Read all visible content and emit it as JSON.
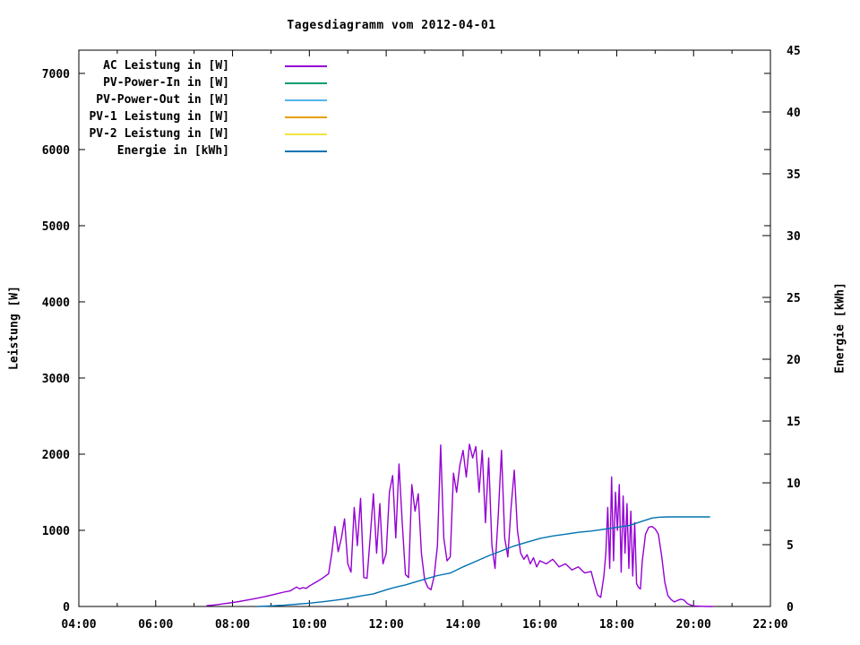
{
  "title": "Tagesdiagramm vom 2012-04-01",
  "chart_data": {
    "type": "line",
    "title": "Tagesdiagramm vom 2012-04-01",
    "background": "#ffffff",
    "border_color": "#000000",
    "grid": false,
    "legend_position": "top-left-inside",
    "x": {
      "unit": "time-of-day",
      "start_minutes": 240,
      "end_minutes": 1320,
      "major_tick_minutes": 120,
      "minor_tick_minutes": 60,
      "tick_labels": [
        "04:00",
        "06:00",
        "08:00",
        "10:00",
        "12:00",
        "14:00",
        "16:00",
        "18:00",
        "20:00",
        "22:00"
      ]
    },
    "y_left": {
      "label": "Leistung [W]",
      "min": 0,
      "max": 7305,
      "tick_values": [
        0,
        1000,
        2000,
        3000,
        4000,
        5000,
        6000,
        7000
      ]
    },
    "y_right": {
      "label": "Energie [kWh]",
      "min": 0,
      "max": 45,
      "tick_values": [
        0,
        5,
        10,
        15,
        20,
        25,
        30,
        35,
        40,
        45
      ]
    },
    "legend": [
      {
        "label": "AC Leistung in [W]",
        "color": "#9400d3"
      },
      {
        "label": "PV-Power-In in [W]",
        "color": "#009e73"
      },
      {
        "label": "PV-Power-Out in [W]",
        "color": "#56b4e9"
      },
      {
        "label": "PV-1 Leistung in [W]",
        "color": "#e69f00"
      },
      {
        "label": "PV-2 Leistung in [W]",
        "color": "#f0e442"
      },
      {
        "label": "Energie in [kWh]",
        "color": "#0072b2"
      }
    ],
    "series": [
      {
        "name": "AC Leistung in [W]",
        "axis": "left",
        "color": "#9400d3",
        "points": [
          [
            440,
            10
          ],
          [
            450,
            18
          ],
          [
            460,
            28
          ],
          [
            470,
            40
          ],
          [
            480,
            52
          ],
          [
            490,
            65
          ],
          [
            500,
            80
          ],
          [
            510,
            95
          ],
          [
            520,
            110
          ],
          [
            530,
            128
          ],
          [
            540,
            148
          ],
          [
            550,
            168
          ],
          [
            560,
            188
          ],
          [
            570,
            205
          ],
          [
            580,
            255
          ],
          [
            585,
            232
          ],
          [
            590,
            248
          ],
          [
            595,
            238
          ],
          [
            600,
            268
          ],
          [
            610,
            318
          ],
          [
            620,
            368
          ],
          [
            630,
            430
          ],
          [
            635,
            700
          ],
          [
            640,
            1050
          ],
          [
            645,
            720
          ],
          [
            650,
            900
          ],
          [
            655,
            1150
          ],
          [
            660,
            560
          ],
          [
            665,
            450
          ],
          [
            670,
            1300
          ],
          [
            675,
            800
          ],
          [
            680,
            1420
          ],
          [
            685,
            380
          ],
          [
            690,
            370
          ],
          [
            695,
            900
          ],
          [
            700,
            1480
          ],
          [
            705,
            700
          ],
          [
            710,
            1350
          ],
          [
            715,
            560
          ],
          [
            720,
            700
          ],
          [
            725,
            1500
          ],
          [
            730,
            1720
          ],
          [
            735,
            900
          ],
          [
            740,
            1870
          ],
          [
            745,
            1100
          ],
          [
            750,
            420
          ],
          [
            755,
            380
          ],
          [
            760,
            1600
          ],
          [
            765,
            1250
          ],
          [
            770,
            1480
          ],
          [
            775,
            700
          ],
          [
            780,
            350
          ],
          [
            785,
            250
          ],
          [
            790,
            220
          ],
          [
            795,
            400
          ],
          [
            800,
            800
          ],
          [
            805,
            2120
          ],
          [
            810,
            900
          ],
          [
            815,
            600
          ],
          [
            820,
            650
          ],
          [
            825,
            1750
          ],
          [
            830,
            1500
          ],
          [
            835,
            1850
          ],
          [
            840,
            2050
          ],
          [
            845,
            1700
          ],
          [
            850,
            2130
          ],
          [
            855,
            1950
          ],
          [
            860,
            2100
          ],
          [
            865,
            1500
          ],
          [
            870,
            2050
          ],
          [
            875,
            1100
          ],
          [
            880,
            1950
          ],
          [
            885,
            800
          ],
          [
            890,
            500
          ],
          [
            895,
            1200
          ],
          [
            900,
            2050
          ],
          [
            905,
            900
          ],
          [
            910,
            650
          ],
          [
            915,
            1300
          ],
          [
            920,
            1790
          ],
          [
            925,
            1000
          ],
          [
            930,
            700
          ],
          [
            935,
            620
          ],
          [
            940,
            680
          ],
          [
            945,
            560
          ],
          [
            950,
            640
          ],
          [
            955,
            520
          ],
          [
            960,
            600
          ],
          [
            970,
            560
          ],
          [
            980,
            620
          ],
          [
            990,
            520
          ],
          [
            1000,
            560
          ],
          [
            1010,
            480
          ],
          [
            1020,
            520
          ],
          [
            1030,
            440
          ],
          [
            1040,
            460
          ],
          [
            1045,
            300
          ],
          [
            1050,
            150
          ],
          [
            1055,
            120
          ],
          [
            1060,
            400
          ],
          [
            1063,
            700
          ],
          [
            1066,
            1300
          ],
          [
            1069,
            500
          ],
          [
            1072,
            1700
          ],
          [
            1075,
            600
          ],
          [
            1078,
            1500
          ],
          [
            1081,
            1000
          ],
          [
            1084,
            1600
          ],
          [
            1087,
            450
          ],
          [
            1090,
            1450
          ],
          [
            1093,
            700
          ],
          [
            1096,
            1350
          ],
          [
            1099,
            500
          ],
          [
            1102,
            1250
          ],
          [
            1105,
            400
          ],
          [
            1108,
            1100
          ],
          [
            1111,
            300
          ],
          [
            1114,
            250
          ],
          [
            1117,
            230
          ],
          [
            1120,
            600
          ],
          [
            1125,
            950
          ],
          [
            1130,
            1040
          ],
          [
            1135,
            1050
          ],
          [
            1140,
            1020
          ],
          [
            1145,
            950
          ],
          [
            1150,
            670
          ],
          [
            1155,
            320
          ],
          [
            1160,
            140
          ],
          [
            1165,
            90
          ],
          [
            1170,
            60
          ],
          [
            1175,
            80
          ],
          [
            1180,
            95
          ],
          [
            1185,
            85
          ],
          [
            1190,
            40
          ],
          [
            1195,
            20
          ],
          [
            1200,
            8
          ],
          [
            1210,
            3
          ],
          [
            1220,
            0
          ],
          [
            1230,
            0
          ]
        ]
      },
      {
        "name": "Energie in [kWh]",
        "axis": "right",
        "color": "#0072b2",
        "points": [
          [
            520,
            0
          ],
          [
            540,
            0.05
          ],
          [
            560,
            0.1
          ],
          [
            580,
            0.18
          ],
          [
            600,
            0.27
          ],
          [
            620,
            0.38
          ],
          [
            640,
            0.5
          ],
          [
            660,
            0.65
          ],
          [
            680,
            0.85
          ],
          [
            700,
            1.02
          ],
          [
            720,
            1.35
          ],
          [
            730,
            1.5
          ],
          [
            740,
            1.62
          ],
          [
            750,
            1.75
          ],
          [
            760,
            1.9
          ],
          [
            780,
            2.2
          ],
          [
            800,
            2.5
          ],
          [
            820,
            2.7
          ],
          [
            840,
            3.2
          ],
          [
            860,
            3.65
          ],
          [
            880,
            4.1
          ],
          [
            900,
            4.5
          ],
          [
            920,
            4.9
          ],
          [
            940,
            5.2
          ],
          [
            960,
            5.5
          ],
          [
            980,
            5.7
          ],
          [
            1000,
            5.85
          ],
          [
            1020,
            6.0
          ],
          [
            1040,
            6.1
          ],
          [
            1060,
            6.25
          ],
          [
            1080,
            6.4
          ],
          [
            1100,
            6.55
          ],
          [
            1120,
            6.9
          ],
          [
            1135,
            7.15
          ],
          [
            1145,
            7.22
          ],
          [
            1160,
            7.25
          ],
          [
            1180,
            7.25
          ],
          [
            1200,
            7.25
          ],
          [
            1225,
            7.25
          ]
        ]
      }
    ]
  }
}
